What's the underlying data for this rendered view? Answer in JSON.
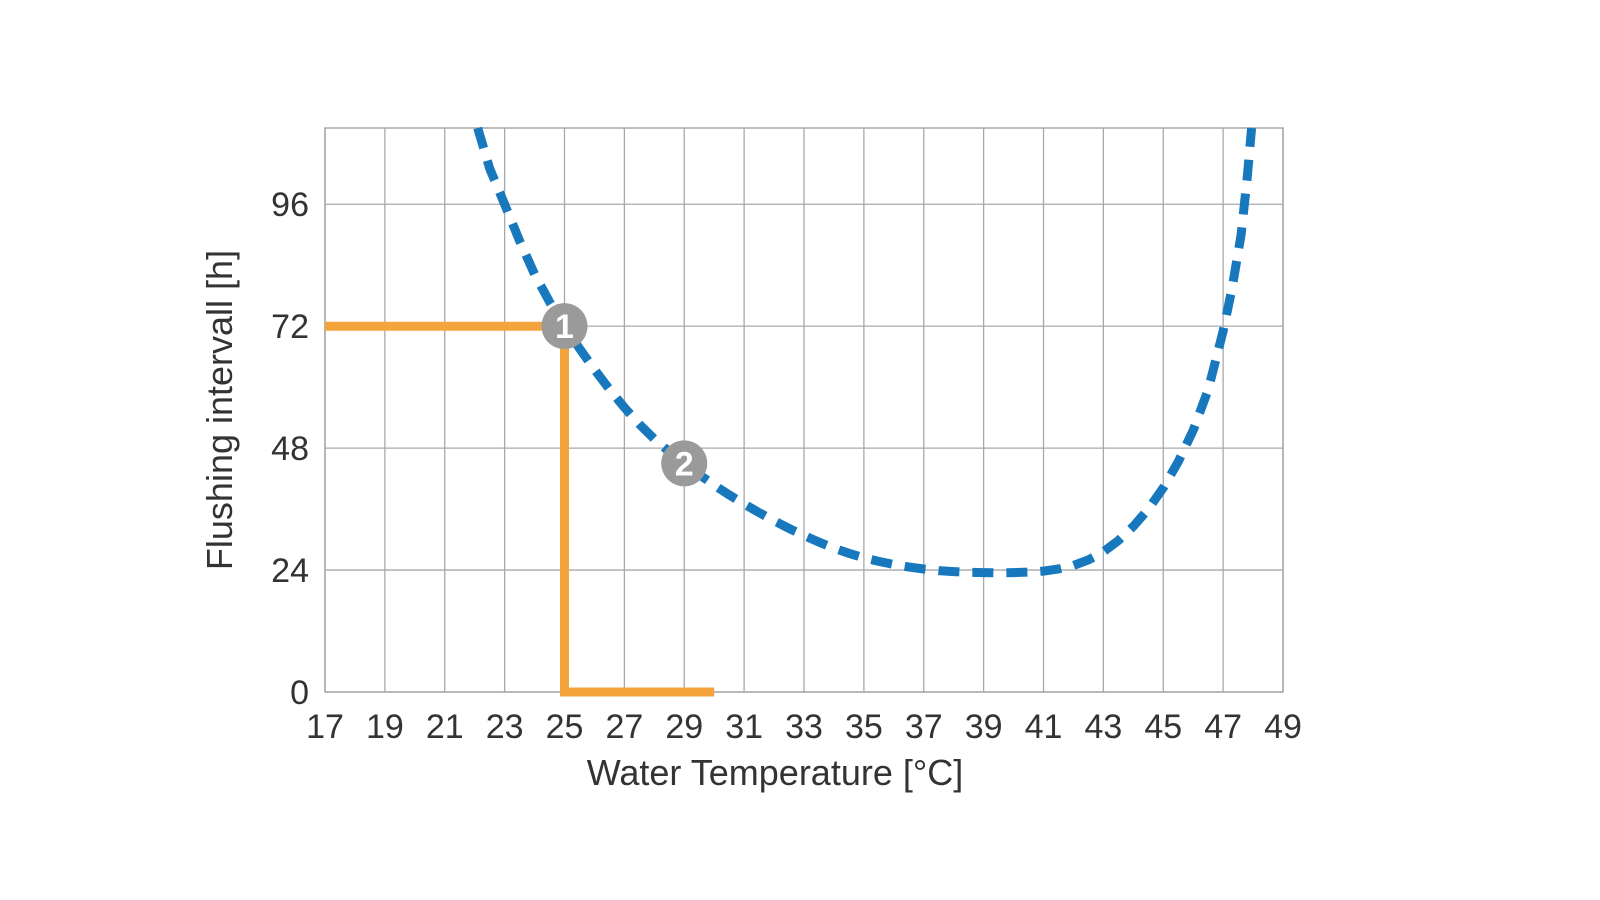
{
  "chart_data": {
    "type": "line",
    "title": "",
    "xlabel": "Water Temperature [°C]",
    "ylabel": "Flushing intervall [h]",
    "xlim": [
      17,
      49
    ],
    "ylim": [
      0,
      111
    ],
    "x_ticks": [
      17,
      19,
      21,
      23,
      25,
      27,
      29,
      31,
      33,
      35,
      37,
      39,
      41,
      43,
      45,
      47,
      49
    ],
    "y_ticks": [
      0,
      24,
      48,
      72,
      96
    ],
    "grid": true,
    "legend": "none",
    "series": [
      {
        "name": "flushing-interval-curve",
        "style": "dashed",
        "color": "#1878bd",
        "points": [
          [
            22.1,
            111
          ],
          [
            22.5,
            103
          ],
          [
            23,
            96
          ],
          [
            23.5,
            88.8
          ],
          [
            24,
            82.2
          ],
          [
            24.5,
            76.8
          ],
          [
            25,
            72
          ],
          [
            25.5,
            67.6
          ],
          [
            26,
            63.5
          ],
          [
            26.5,
            59.6
          ],
          [
            27,
            56
          ],
          [
            27.5,
            52.7
          ],
          [
            28,
            49.8
          ],
          [
            28.5,
            47.3
          ],
          [
            29,
            45
          ],
          [
            29.5,
            42.8
          ],
          [
            30,
            40.7
          ],
          [
            30.5,
            38.8
          ],
          [
            31,
            37
          ],
          [
            31.5,
            35.3
          ],
          [
            32,
            33.7
          ],
          [
            32.5,
            32.2
          ],
          [
            33,
            30.8
          ],
          [
            33.5,
            29.5
          ],
          [
            34,
            28.3
          ],
          [
            34.5,
            27.3
          ],
          [
            35,
            26.4
          ],
          [
            35.5,
            25.7
          ],
          [
            36,
            25.1
          ],
          [
            36.5,
            24.6
          ],
          [
            37,
            24.2
          ],
          [
            37.5,
            23.9
          ],
          [
            38,
            23.7
          ],
          [
            38.5,
            23.55
          ],
          [
            39,
            23.5
          ],
          [
            39.5,
            23.45
          ],
          [
            40,
            23.5
          ],
          [
            40.5,
            23.6
          ],
          [
            41,
            23.8
          ],
          [
            41.5,
            24.2
          ],
          [
            42,
            24.9
          ],
          [
            42.5,
            26
          ],
          [
            43,
            27.6
          ],
          [
            43.5,
            29.8
          ],
          [
            44,
            32.6
          ],
          [
            44.5,
            36
          ],
          [
            45,
            40.2
          ],
          [
            45.5,
            45.3
          ],
          [
            46,
            51.5
          ],
          [
            46.5,
            59.5
          ],
          [
            47,
            71
          ],
          [
            47.3,
            79.5
          ],
          [
            47.6,
            90
          ],
          [
            47.8,
            101
          ],
          [
            47.95,
            111
          ]
        ]
      },
      {
        "name": "example-guide-line",
        "style": "solid",
        "color": "#f5a43c",
        "points": [
          [
            17,
            72
          ],
          [
            25,
            72
          ],
          [
            25,
            0
          ],
          [
            30,
            0
          ]
        ]
      }
    ],
    "markers": [
      {
        "label": "1",
        "x": 25,
        "y": 72,
        "color": "#9a9a9a",
        "text_color": "#ffffff"
      },
      {
        "label": "2",
        "x": 29,
        "y": 45,
        "color": "#9a9a9a",
        "text_color": "#ffffff"
      }
    ],
    "colors": {
      "curve_blue": "#1878bd",
      "guide_orange": "#f5a43c",
      "marker_gray": "#9a9a9a",
      "grid_gray": "#a8a8a8",
      "text": "#333333",
      "background": "#ffffff"
    }
  }
}
